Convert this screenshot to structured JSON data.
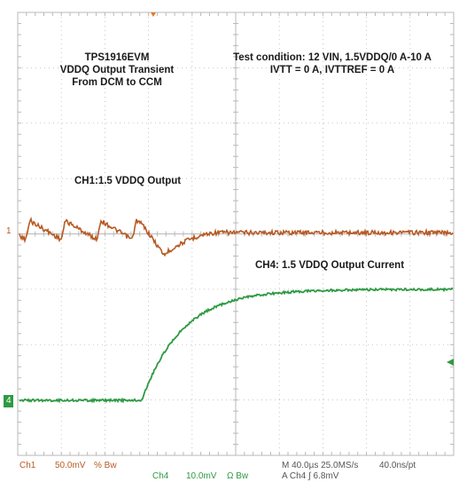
{
  "chart_data": {
    "type": "line",
    "annotations": {
      "title_lines": [
        "TPS1916EVM",
        "VDDQ Output Transient",
        "From DCM to CCM"
      ],
      "condition_lines": [
        "Test condition: 12 VIN, 1.5VDDQ/0 A-10 A",
        "IVTT = 0 A, IVTTREF = 0 A"
      ],
      "ch1_label": "CH1:1.5 VDDQ Output",
      "ch4_label": "CH4: 1.5 VDDQ Output Current"
    },
    "grid": true,
    "grid_divisions": {
      "x": 10,
      "y": 8
    },
    "series": [
      {
        "name": "CH1",
        "color": "#b85a23"
      },
      {
        "name": "CH4",
        "color": "#2e9a42"
      }
    ],
    "channel_markers": {
      "ch1": "1",
      "ch4": "4"
    },
    "readout": {
      "ch1_label": "Ch1",
      "ch1_scale": "50.0mV",
      "ch1_coupling": "% Bw",
      "ch4_label": "Ch4",
      "ch4_scale": "10.0mV",
      "ch4_coupling": "Ω Bw",
      "timebase": "M 40.0µs 25.0MS/s",
      "sample_interval": "40.0ns/pt",
      "trigger": "A Ch4 ∫ 6.8mV"
    }
  }
}
